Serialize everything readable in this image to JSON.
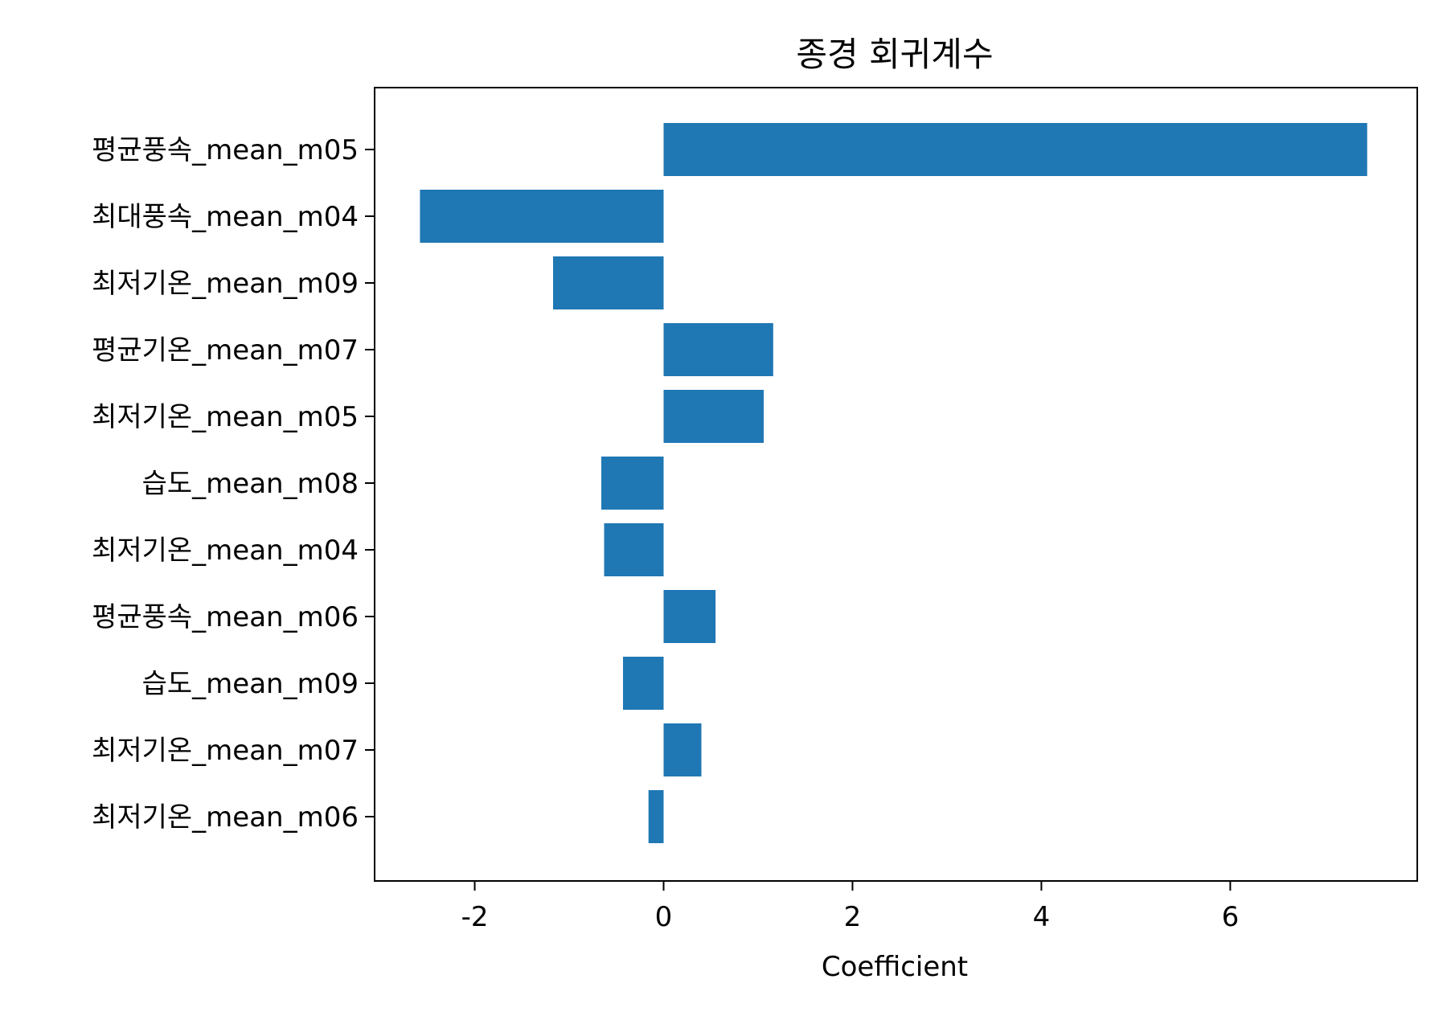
{
  "chart_data": {
    "type": "bar",
    "orientation": "horizontal",
    "title": "종경 회귀계수",
    "xlabel": "Coefficient",
    "ylabel": "",
    "xlim": [
      -3.06,
      7.98
    ],
    "xticks": [
      -2,
      0,
      2,
      4,
      6
    ],
    "xtick_labels": [
      "-2",
      "0",
      "2",
      "4",
      "6"
    ],
    "grid": false,
    "bar_color": "#1f77b4",
    "categories": [
      "평균풍속_mean_m05",
      "최대풍속_mean_m04",
      "최저기온_mean_m09",
      "평균기온_mean_m07",
      "최저기온_mean_m05",
      "습도_mean_m08",
      "최저기온_mean_m04",
      "평균풍속_mean_m06",
      "습도_mean_m09",
      "최저기온_mean_m07",
      "최저기온_mean_m06"
    ],
    "values": [
      7.45,
      -2.58,
      -1.17,
      1.16,
      1.06,
      -0.66,
      -0.63,
      0.55,
      -0.43,
      0.4,
      -0.16
    ]
  }
}
